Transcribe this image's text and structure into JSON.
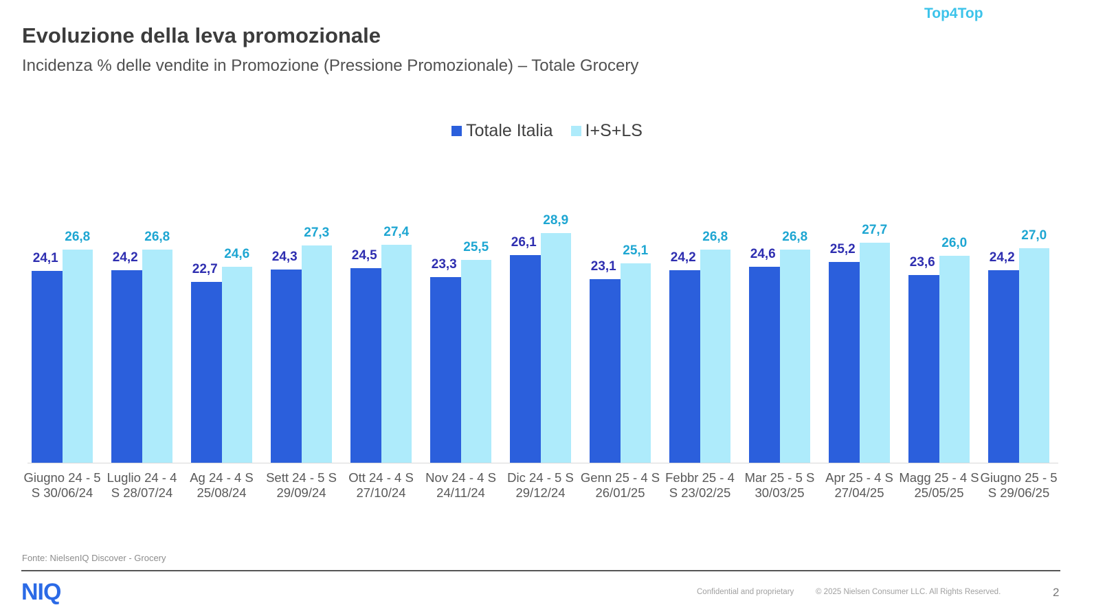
{
  "header": {
    "title": "Evoluzione della leva promozionale",
    "subtitle": "Incidenza % delle vendite in Promozione (Pressione Promozionale) – Totale Grocery",
    "brand": "Top4Top"
  },
  "chart_data": {
    "type": "bar",
    "title": "Evoluzione della leva promozionale",
    "xlabel": "",
    "ylabel": "",
    "ylim": [
      0,
      30
    ],
    "grid": false,
    "legend_placement": "top-center",
    "categories": [
      "Giugno 24 - 5 S 30/06/24",
      "Luglio 24 - 4 S 28/07/24",
      "Ag 24 - 4 S 25/08/24",
      "Sett 24 - 5 S 29/09/24",
      "Ott 24 - 4 S 27/10/24",
      "Nov 24 - 4 S 24/11/24",
      "Dic 24 - 5 S 29/12/24",
      "Genn 25 - 4 S 26/01/25",
      "Febbr 25 - 4 S 23/02/25",
      "Mar 25 - 5 S 30/03/25",
      "Apr 25 - 4 S 27/04/25",
      "Magg 25 - 4 S 25/05/25",
      "Giugno 25 - 5 S 29/06/25"
    ],
    "series": [
      {
        "name": "Totale Italia",
        "color": "#2b5fdc",
        "label_color": "#2e2eb0",
        "values": [
          24.1,
          24.2,
          22.7,
          24.3,
          24.5,
          23.3,
          26.1,
          23.1,
          24.2,
          24.6,
          25.2,
          23.6,
          24.2
        ],
        "labels": [
          "24,1",
          "24,2",
          "22,7",
          "24,3",
          "24,5",
          "23,3",
          "26,1",
          "23,1",
          "24,2",
          "24,6",
          "25,2",
          "23,6",
          "24,2"
        ]
      },
      {
        "name": "I+S+LS",
        "color": "#aeebfb",
        "label_color": "#1ea6d2",
        "values": [
          26.8,
          26.8,
          24.6,
          27.3,
          27.4,
          25.5,
          28.9,
          25.1,
          26.8,
          26.8,
          27.7,
          26.0,
          27.0
        ],
        "labels": [
          "26,8",
          "26,8",
          "24,6",
          "27,3",
          "27,4",
          "25,5",
          "28,9",
          "25,1",
          "26,8",
          "26,8",
          "27,7",
          "26,0",
          "27,0"
        ]
      }
    ]
  },
  "footer": {
    "source": "Fonte: NielsenIQ Discover - Grocery",
    "logo": "NIQ",
    "confidential": "Confidential and proprietary",
    "copyright": "© 2025 Nielsen Consumer LLC. All Rights Reserved.",
    "page": "2"
  }
}
